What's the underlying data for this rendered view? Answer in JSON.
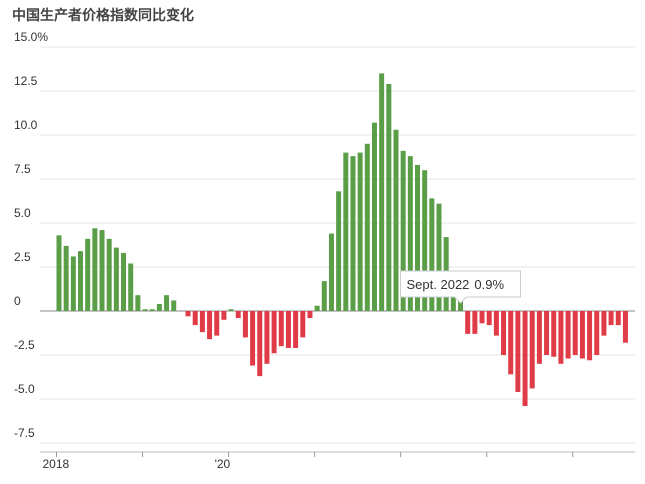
{
  "chart_data": {
    "type": "bar",
    "title": "中国生产者价格指数同比变化",
    "categories": [
      "2018-01",
      "2018-02",
      "2018-03",
      "2018-04",
      "2018-05",
      "2018-06",
      "2018-07",
      "2018-08",
      "2018-09",
      "2018-10",
      "2018-11",
      "2018-12",
      "2019-01",
      "2019-02",
      "2019-03",
      "2019-04",
      "2019-05",
      "2019-06",
      "2019-07",
      "2019-08",
      "2019-09",
      "2019-10",
      "2019-11",
      "2019-12",
      "2020-01",
      "2020-02",
      "2020-03",
      "2020-04",
      "2020-05",
      "2020-06",
      "2020-07",
      "2020-08",
      "2020-09",
      "2020-10",
      "2020-11",
      "2020-12",
      "2021-01",
      "2021-02",
      "2021-03",
      "2021-04",
      "2021-05",
      "2021-06",
      "2021-07",
      "2021-08",
      "2021-09",
      "2021-10",
      "2021-11",
      "2021-12",
      "2022-01",
      "2022-02",
      "2022-03",
      "2022-04",
      "2022-05",
      "2022-06",
      "2022-07",
      "2022-08",
      "2022-09",
      "2022-10",
      "2022-11",
      "2022-12",
      "2023-01",
      "2023-02",
      "2023-03",
      "2023-04",
      "2023-05",
      "2023-06",
      "2023-07",
      "2023-08",
      "2023-09",
      "2023-10",
      "2023-11",
      "2023-12",
      "2024-01",
      "2024-02",
      "2024-03",
      "2024-04",
      "2024-05",
      "2024-06",
      "2024-07",
      "2024-08"
    ],
    "values": [
      4.3,
      3.7,
      3.1,
      3.4,
      4.1,
      4.7,
      4.6,
      4.1,
      3.6,
      3.3,
      2.7,
      0.9,
      0.1,
      0.1,
      0.4,
      0.9,
      0.6,
      0.0,
      -0.3,
      -0.8,
      -1.2,
      -1.6,
      -1.4,
      -0.5,
      0.1,
      -0.4,
      -1.5,
      -3.1,
      -3.7,
      -3.0,
      -2.4,
      -2.0,
      -2.1,
      -2.1,
      -1.5,
      -0.4,
      0.3,
      1.7,
      4.4,
      6.8,
      9.0,
      8.8,
      9.0,
      9.5,
      10.7,
      13.5,
      12.9,
      10.3,
      9.1,
      8.8,
      8.3,
      8.0,
      6.4,
      6.1,
      4.2,
      2.3,
      0.9,
      -1.3,
      -1.3,
      -0.7,
      -0.8,
      -1.4,
      -2.5,
      -3.6,
      -4.6,
      -5.4,
      -4.4,
      -3.0,
      -2.5,
      -2.6,
      -3.0,
      -2.7,
      -2.5,
      -2.7,
      -2.8,
      -2.5,
      -1.4,
      -0.8,
      -0.8,
      -1.8
    ],
    "positive_color": "#5a9e48",
    "negative_color": "#e03c48",
    "ylim": [
      -7.5,
      15
    ],
    "yticks": [
      {
        "value": 15,
        "label": "15.0%"
      },
      12.5,
      {
        "value": 10,
        "label": "10.0"
      },
      7.5,
      {
        "value": 5,
        "label": "5.0"
      },
      2.5,
      0,
      -2.5,
      {
        "value": -5,
        "label": "-5.0"
      },
      -7.5
    ],
    "xticks": [
      {
        "value": "2018-01",
        "label": "2018"
      },
      {
        "value": "2019-01",
        "label": null
      },
      {
        "value": "2020-01",
        "label": "'20"
      },
      {
        "value": "2021-01",
        "label": null
      },
      {
        "value": "2022-01",
        "label": null
      },
      {
        "value": "2023-01",
        "label": null
      },
      {
        "value": "2024-01",
        "label": null
      }
    ],
    "grid": true,
    "tooltip": {
      "label": "Sept. 2022",
      "category": "2022-09",
      "value_label": "0.9%"
    }
  }
}
